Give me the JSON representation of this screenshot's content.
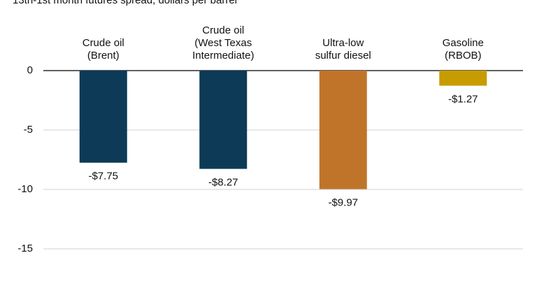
{
  "chart_data": {
    "type": "bar",
    "subtitle": "13th-1st month futures spread, dollars per barrel",
    "categories": [
      [
        "Crude oil",
        "(Brent)"
      ],
      [
        "Crude oil",
        "(West Texas",
        "Intermediate)"
      ],
      [
        "Ultra-low",
        "sulfur diesel"
      ],
      [
        "Gasoline",
        "(RBOB)"
      ]
    ],
    "values": [
      -7.75,
      -8.27,
      -9.97,
      -1.27
    ],
    "value_labels": [
      "-$7.75",
      "-$8.27",
      "-$9.97",
      "-$1.27"
    ],
    "colors": [
      "#0d3a56",
      "#0d3a56",
      "#c0742a",
      "#c79c00"
    ],
    "ylim": [
      -15,
      0
    ],
    "yticks": [
      0,
      -5,
      -10,
      -15
    ],
    "grid": true
  }
}
